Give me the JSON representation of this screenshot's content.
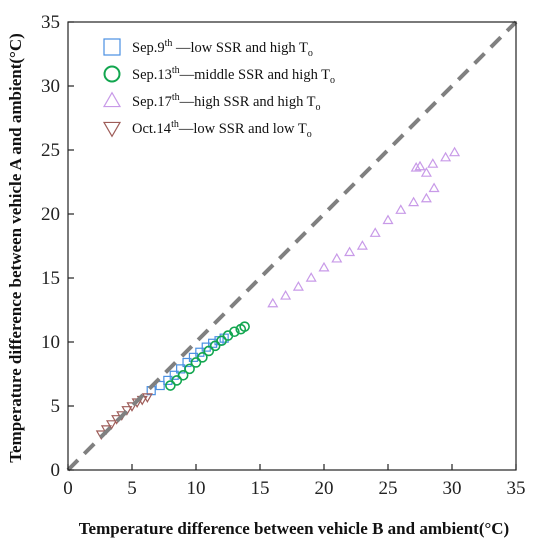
{
  "chart_data": {
    "type": "scatter",
    "xlabel": "Temperature difference between vehicle B and ambient(°C)",
    "ylabel": "Temperature difference between vehicle A and ambient(°C)",
    "xlim": [
      0,
      35
    ],
    "ylim": [
      0,
      35
    ],
    "xticks": [
      "0",
      "5",
      "10",
      "15",
      "20",
      "25",
      "30",
      "35"
    ],
    "yticks": [
      "0",
      "5",
      "10",
      "15",
      "20",
      "25",
      "30",
      "35"
    ],
    "grid": false,
    "legend_position": "top-left",
    "reference_line": {
      "style": "dashed",
      "color": "#808080",
      "x": [
        0,
        35
      ],
      "y": [
        0,
        35
      ]
    },
    "series": [
      {
        "name": "Sep.9th—low SSR and high To",
        "label_parts": [
          "Sep.9",
          "th",
          " —low SSR and high T",
          "o"
        ],
        "marker": "square",
        "color": "#4a90e2",
        "x": [
          6.5,
          7.2,
          7.8,
          8.3,
          8.8,
          9.3,
          9.8,
          10.3,
          10.8,
          11.3,
          11.8,
          12.2
        ],
        "y": [
          6.2,
          6.6,
          7.0,
          7.4,
          7.9,
          8.4,
          8.8,
          9.2,
          9.6,
          9.9,
          10.1,
          10.3
        ]
      },
      {
        "name": "Sep.13th—middle SSR and high To",
        "label_parts": [
          "Sep.13",
          "th",
          "—middle SSR and high T",
          "o"
        ],
        "marker": "circle",
        "color": "#12a64f",
        "x": [
          8.0,
          8.5,
          9.0,
          9.5,
          10.0,
          10.5,
          11.0,
          11.5,
          12.0,
          12.5,
          13.0,
          13.5,
          13.8
        ],
        "y": [
          6.6,
          7.0,
          7.4,
          7.9,
          8.4,
          8.8,
          9.3,
          9.7,
          10.1,
          10.5,
          10.8,
          11.0,
          11.2
        ]
      },
      {
        "name": "Sep.17th—high SSR and high To",
        "label_parts": [
          "Sep.17",
          "th",
          "—high SSR and high T",
          "o"
        ],
        "marker": "triangle-up",
        "color": "#c89ae8",
        "x": [
          16.0,
          17.0,
          18.0,
          19.0,
          20.0,
          21.0,
          22.0,
          23.0,
          24.0,
          25.0,
          26.0,
          27.0,
          28.0,
          28.6,
          28.0,
          27.2,
          27.5,
          28.5,
          29.5,
          30.2
        ],
        "y": [
          13.0,
          13.6,
          14.3,
          15.0,
          15.8,
          16.5,
          17.0,
          17.5,
          18.5,
          19.5,
          20.3,
          20.9,
          21.2,
          22.0,
          23.2,
          23.6,
          23.7,
          23.9,
          24.4,
          24.8
        ]
      },
      {
        "name": "Oct.14th—low SSR and low To",
        "label_parts": [
          "Oct.14",
          "th",
          "—low SSR and low T",
          "o"
        ],
        "marker": "triangle-down",
        "color": "#9e5c58",
        "x": [
          2.6,
          3.0,
          3.4,
          3.8,
          4.2,
          4.6,
          5.0,
          5.4,
          5.8,
          6.2
        ],
        "y": [
          2.8,
          3.2,
          3.6,
          4.0,
          4.3,
          4.7,
          5.0,
          5.3,
          5.5,
          5.7
        ]
      }
    ]
  }
}
